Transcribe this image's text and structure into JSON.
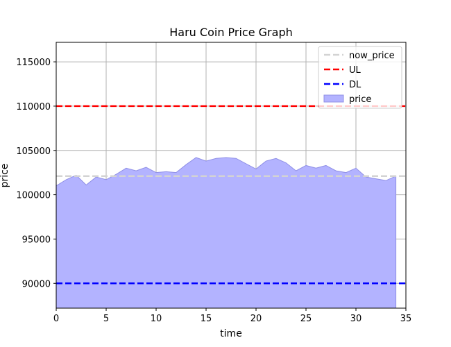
{
  "chart_data": {
    "type": "area",
    "title": "Haru Coin Price Graph",
    "xlabel": "time",
    "ylabel": "price",
    "xlim": [
      0,
      35
    ],
    "ylim": [
      87200,
      117200
    ],
    "xticks": [
      0,
      5,
      10,
      15,
      20,
      25,
      30,
      35
    ],
    "yticks": [
      90000,
      95000,
      100000,
      105000,
      110000,
      115000
    ],
    "grid": true,
    "legend_position": "top-right",
    "series": [
      {
        "name": "price",
        "kind": "area",
        "color": "#b3b3ff",
        "edge_color": "#8f8fe6",
        "x": [
          0,
          1,
          2,
          3,
          4,
          5,
          6,
          7,
          8,
          9,
          10,
          11,
          12,
          13,
          14,
          15,
          16,
          17,
          18,
          19,
          20,
          21,
          22,
          23,
          24,
          25,
          26,
          27,
          28,
          29,
          30,
          31,
          32,
          33,
          34
        ],
        "values": [
          101000,
          101700,
          102200,
          101100,
          102000,
          101700,
          102300,
          103000,
          102700,
          103100,
          102500,
          102600,
          102500,
          103400,
          104200,
          103800,
          104100,
          104200,
          104100,
          103500,
          102900,
          103800,
          104100,
          103600,
          102700,
          103300,
          103000,
          103300,
          102700,
          102500,
          103000,
          102000,
          101800,
          101600,
          102100
        ]
      },
      {
        "name": "now_price",
        "kind": "hline",
        "value": 102100,
        "color": "#d3d3d3"
      },
      {
        "name": "UL",
        "kind": "hline",
        "value": 110000,
        "color": "#ff0000"
      },
      {
        "name": "DL",
        "kind": "hline",
        "value": 90000,
        "color": "#0000ff"
      }
    ],
    "legend": [
      "now_price",
      "UL",
      "DL",
      "price"
    ]
  }
}
